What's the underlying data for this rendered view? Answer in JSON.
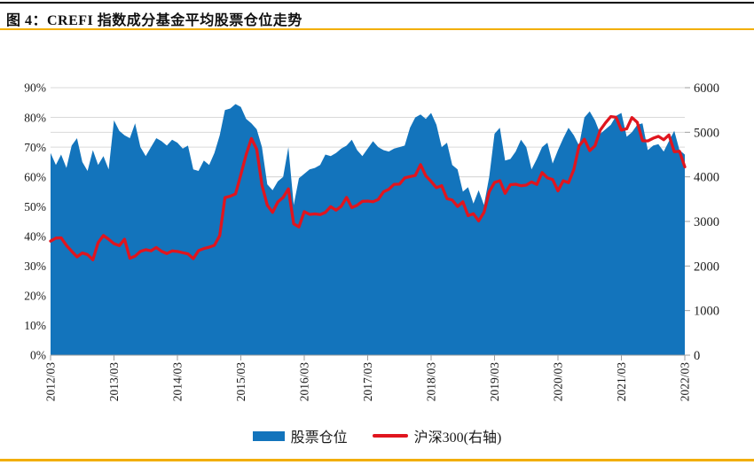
{
  "figure": {
    "caption": "图 4：CREFI 指数成分基金平均股票仓位走势"
  },
  "accents": {
    "top_rule_color": "#000000",
    "gold_rule_color": "#F2AE00"
  },
  "legend": {
    "items": [
      {
        "label": "股票仓位",
        "marker": "rect",
        "color": "#1374BC"
      },
      {
        "label": "沪深300(右轴)",
        "marker": "line",
        "color": "#E0151E"
      }
    ]
  },
  "chart_data": {
    "type": "combo",
    "title": "CREFI 指数成分基金平均股票仓位走势",
    "x_start": "2012/03",
    "x_end": "2022/03",
    "x_points": 121,
    "x_tick_labels": [
      "2012/03",
      "2013/03",
      "2014/03",
      "2015/03",
      "2016/03",
      "2017/03",
      "2018/03",
      "2019/03",
      "2020/03",
      "2021/03",
      "2022/03"
    ],
    "left_axis": {
      "min": 0,
      "max": 90,
      "step": 10,
      "unit": "%",
      "tick_labels": [
        "0%",
        "10%",
        "20%",
        "30%",
        "40%",
        "50%",
        "60%",
        "70%",
        "80%",
        "90%"
      ]
    },
    "right_axis": {
      "min": 0,
      "max": 6000,
      "step": 1000,
      "tick_labels": [
        "0",
        "1000",
        "2000",
        "3000",
        "4000",
        "5000",
        "6000"
      ]
    },
    "grid": true,
    "legend_position": "bottom",
    "series": [
      {
        "name": "股票仓位",
        "type": "area",
        "axis": "left",
        "unit": "%",
        "color": "#1374BC",
        "values": [
          68,
          64,
          67.5,
          63,
          70.5,
          73,
          65,
          62,
          69,
          64,
          67,
          62.5,
          79,
          75.5,
          74,
          73,
          78,
          70,
          67,
          70,
          73,
          72,
          70.5,
          72.5,
          71.5,
          69.5,
          70.5,
          62.5,
          62,
          65.5,
          64,
          68,
          74,
          82.5,
          83,
          84.5,
          83.5,
          79.5,
          78,
          76,
          70,
          57.5,
          55.5,
          58.5,
          60,
          70,
          50.5,
          59.5,
          61,
          62.5,
          63,
          64,
          67.5,
          67,
          68,
          69.5,
          70.5,
          72.5,
          69,
          67,
          69.5,
          72,
          70,
          69,
          68.5,
          69.5,
          70,
          70.5,
          76.5,
          80,
          81,
          79.5,
          81.5,
          77.5,
          70,
          71.5,
          64,
          62.5,
          55,
          56.5,
          51,
          55.5,
          50.5,
          60,
          74.5,
          76.5,
          65.5,
          66,
          68.5,
          72.5,
          70,
          62.5,
          66,
          70,
          71.5,
          64.5,
          69,
          73,
          76.5,
          74,
          70.5,
          80,
          82,
          79,
          74.5,
          76,
          77.5,
          80.5,
          81.5,
          73.5,
          75,
          77.5,
          78,
          69,
          70.5,
          71,
          68.5,
          72,
          75.5,
          69,
          67.5
        ]
      },
      {
        "name": "沪深300(右轴)",
        "type": "line",
        "axis": "right",
        "color": "#E0151E",
        "values": [
          2559,
          2626,
          2632,
          2461,
          2333,
          2205,
          2293,
          2254,
          2139,
          2523,
          2685,
          2600,
          2501,
          2458,
          2601,
          2173,
          2221,
          2328,
          2366,
          2341,
          2415,
          2331,
          2278,
          2338,
          2326,
          2299,
          2272,
          2166,
          2345,
          2392,
          2421,
          2463,
          2683,
          3534,
          3566,
          3617,
          4050,
          4500,
          4860,
          4620,
          3816,
          3366,
          3203,
          3437,
          3538,
          3731,
          2946,
          2877,
          3221,
          3156,
          3168,
          3153,
          3203,
          3331,
          3253,
          3340,
          3539,
          3310,
          3363,
          3450,
          3456,
          3441,
          3492,
          3666,
          3722,
          3832,
          3837,
          3976,
          4006,
          4031,
          4276,
          4023,
          3899,
          3757,
          3802,
          3511,
          3481,
          3335,
          3439,
          3129,
          3173,
          3011,
          3202,
          3665,
          3872,
          3913,
          3630,
          3825,
          3835,
          3800,
          3815,
          3887,
          3829,
          4097,
          3977,
          3940,
          3686,
          3913,
          3868,
          4164,
          4695,
          4844,
          4587,
          4695,
          5049,
          5211,
          5352,
          5337,
          5048,
          5078,
          5331,
          5224,
          4811,
          4806,
          4866,
          4909,
          4832,
          4940,
          4563,
          4573,
          4223
        ]
      }
    ]
  }
}
